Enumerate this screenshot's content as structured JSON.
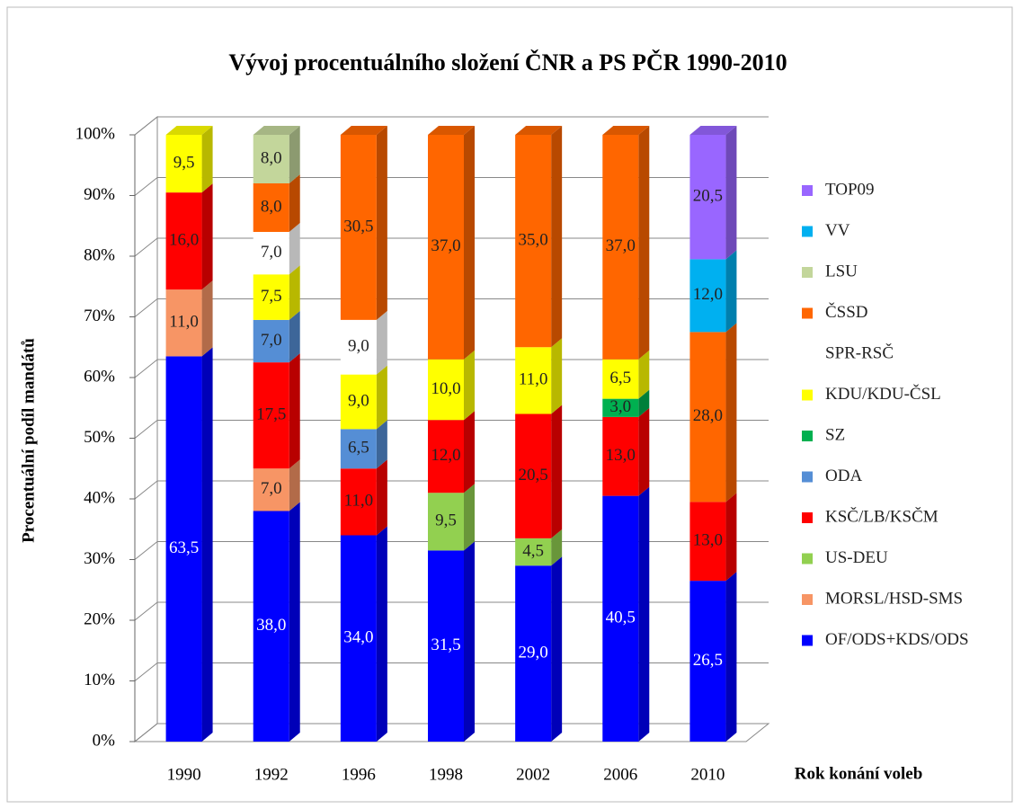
{
  "chart_data": {
    "type": "stacked_bar_3d",
    "title": "Vývoj procentuálního složení ČNR a PS PČR 1990-2010",
    "y_axis_label": "Procentuální podíl mandátů",
    "x_axis_label": "Rok konání voleb",
    "categories": [
      "1990",
      "1992",
      "1996",
      "1998",
      "2002",
      "2006",
      "2010"
    ],
    "ylim": [
      0,
      100
    ],
    "yticks": [
      {
        "value": 0,
        "label": "0%"
      },
      {
        "value": 10,
        "label": "10%"
      },
      {
        "value": 20,
        "label": "20%"
      },
      {
        "value": 30,
        "label": "30%"
      },
      {
        "value": 40,
        "label": "40%"
      },
      {
        "value": 50,
        "label": "50%"
      },
      {
        "value": 60,
        "label": "60%"
      },
      {
        "value": 70,
        "label": "70%"
      },
      {
        "value": 80,
        "label": "80%"
      },
      {
        "value": 90,
        "label": "90%"
      },
      {
        "value": 100,
        "label": "100%"
      }
    ],
    "grid": true,
    "legend": "right",
    "series": [
      {
        "name": "OF/ODS+KDS/ODS",
        "color": "#0000ff",
        "values": [
          63.5,
          38.0,
          34.0,
          31.5,
          29.0,
          40.5,
          26.5
        ],
        "value_labels": [
          "63,5",
          "38,0",
          "34,0",
          "31,5",
          "29,0",
          "40,5",
          "26,5"
        ]
      },
      {
        "name": "MORSL/HSD-SMS",
        "color": "#f79565",
        "values": [
          11.0,
          7.0,
          null,
          null,
          null,
          null,
          null
        ],
        "value_labels": [
          "11,0",
          "7,0",
          null,
          null,
          null,
          null,
          null
        ]
      },
      {
        "name": "US-DEU",
        "color": "#92d050",
        "values": [
          null,
          null,
          null,
          9.5,
          4.5,
          null,
          null
        ],
        "value_labels": [
          null,
          null,
          null,
          "9,5",
          "4,5",
          null,
          null
        ]
      },
      {
        "name": "KSČ/LB/KSČM",
        "color": "#ff0000",
        "values": [
          16.0,
          17.5,
          11.0,
          12.0,
          20.5,
          13.0,
          13.0
        ],
        "value_labels": [
          "16,0",
          "17,5",
          "11,0",
          "12,0",
          "20,5",
          "13,0",
          "13,0"
        ]
      },
      {
        "name": "ODA",
        "color": "#558ed5",
        "values": [
          null,
          7.0,
          6.5,
          null,
          null,
          null,
          null
        ],
        "value_labels": [
          null,
          "7,0",
          "6,5",
          null,
          null,
          null,
          null
        ]
      },
      {
        "name": "SZ",
        "color": "#00b050",
        "values": [
          null,
          null,
          null,
          null,
          null,
          3.0,
          null
        ],
        "value_labels": [
          null,
          null,
          null,
          null,
          null,
          "3,0",
          null
        ]
      },
      {
        "name": "KDU/KDU-ČSL",
        "color": "#ffff00",
        "values": [
          9.5,
          7.5,
          9.0,
          10.0,
          11.0,
          6.5,
          null
        ],
        "value_labels": [
          "9,5",
          "7,5",
          "9,0",
          "10,0",
          "11,0",
          "6,5",
          null
        ]
      },
      {
        "name": "SPR-RSČ",
        "color": "#ffffff",
        "values": [
          null,
          7.0,
          9.0,
          null,
          null,
          null,
          null
        ],
        "value_labels": [
          null,
          "7,0",
          "9,0",
          null,
          null,
          null,
          null
        ]
      },
      {
        "name": "ČSSD",
        "color": "#ff6600",
        "values": [
          null,
          8.0,
          30.5,
          37.0,
          35.0,
          37.0,
          28.0
        ],
        "value_labels": [
          null,
          "8,0",
          "30,5",
          "37,0",
          "35,0",
          "37,0",
          "28,0"
        ]
      },
      {
        "name": "LSU",
        "color": "#c3d69b",
        "values": [
          null,
          8.0,
          null,
          null,
          null,
          null,
          null
        ],
        "value_labels": [
          null,
          "8,0",
          null,
          null,
          null,
          null,
          null
        ]
      },
      {
        "name": "VV",
        "color": "#00b0f0",
        "values": [
          null,
          null,
          null,
          null,
          null,
          null,
          12.0
        ],
        "value_labels": [
          null,
          null,
          null,
          null,
          null,
          null,
          "12,0"
        ]
      },
      {
        "name": "TOP09",
        "color": "#9966ff",
        "values": [
          null,
          null,
          null,
          null,
          null,
          null,
          20.5
        ],
        "value_labels": [
          null,
          null,
          null,
          null,
          null,
          null,
          "20,5"
        ]
      }
    ]
  }
}
